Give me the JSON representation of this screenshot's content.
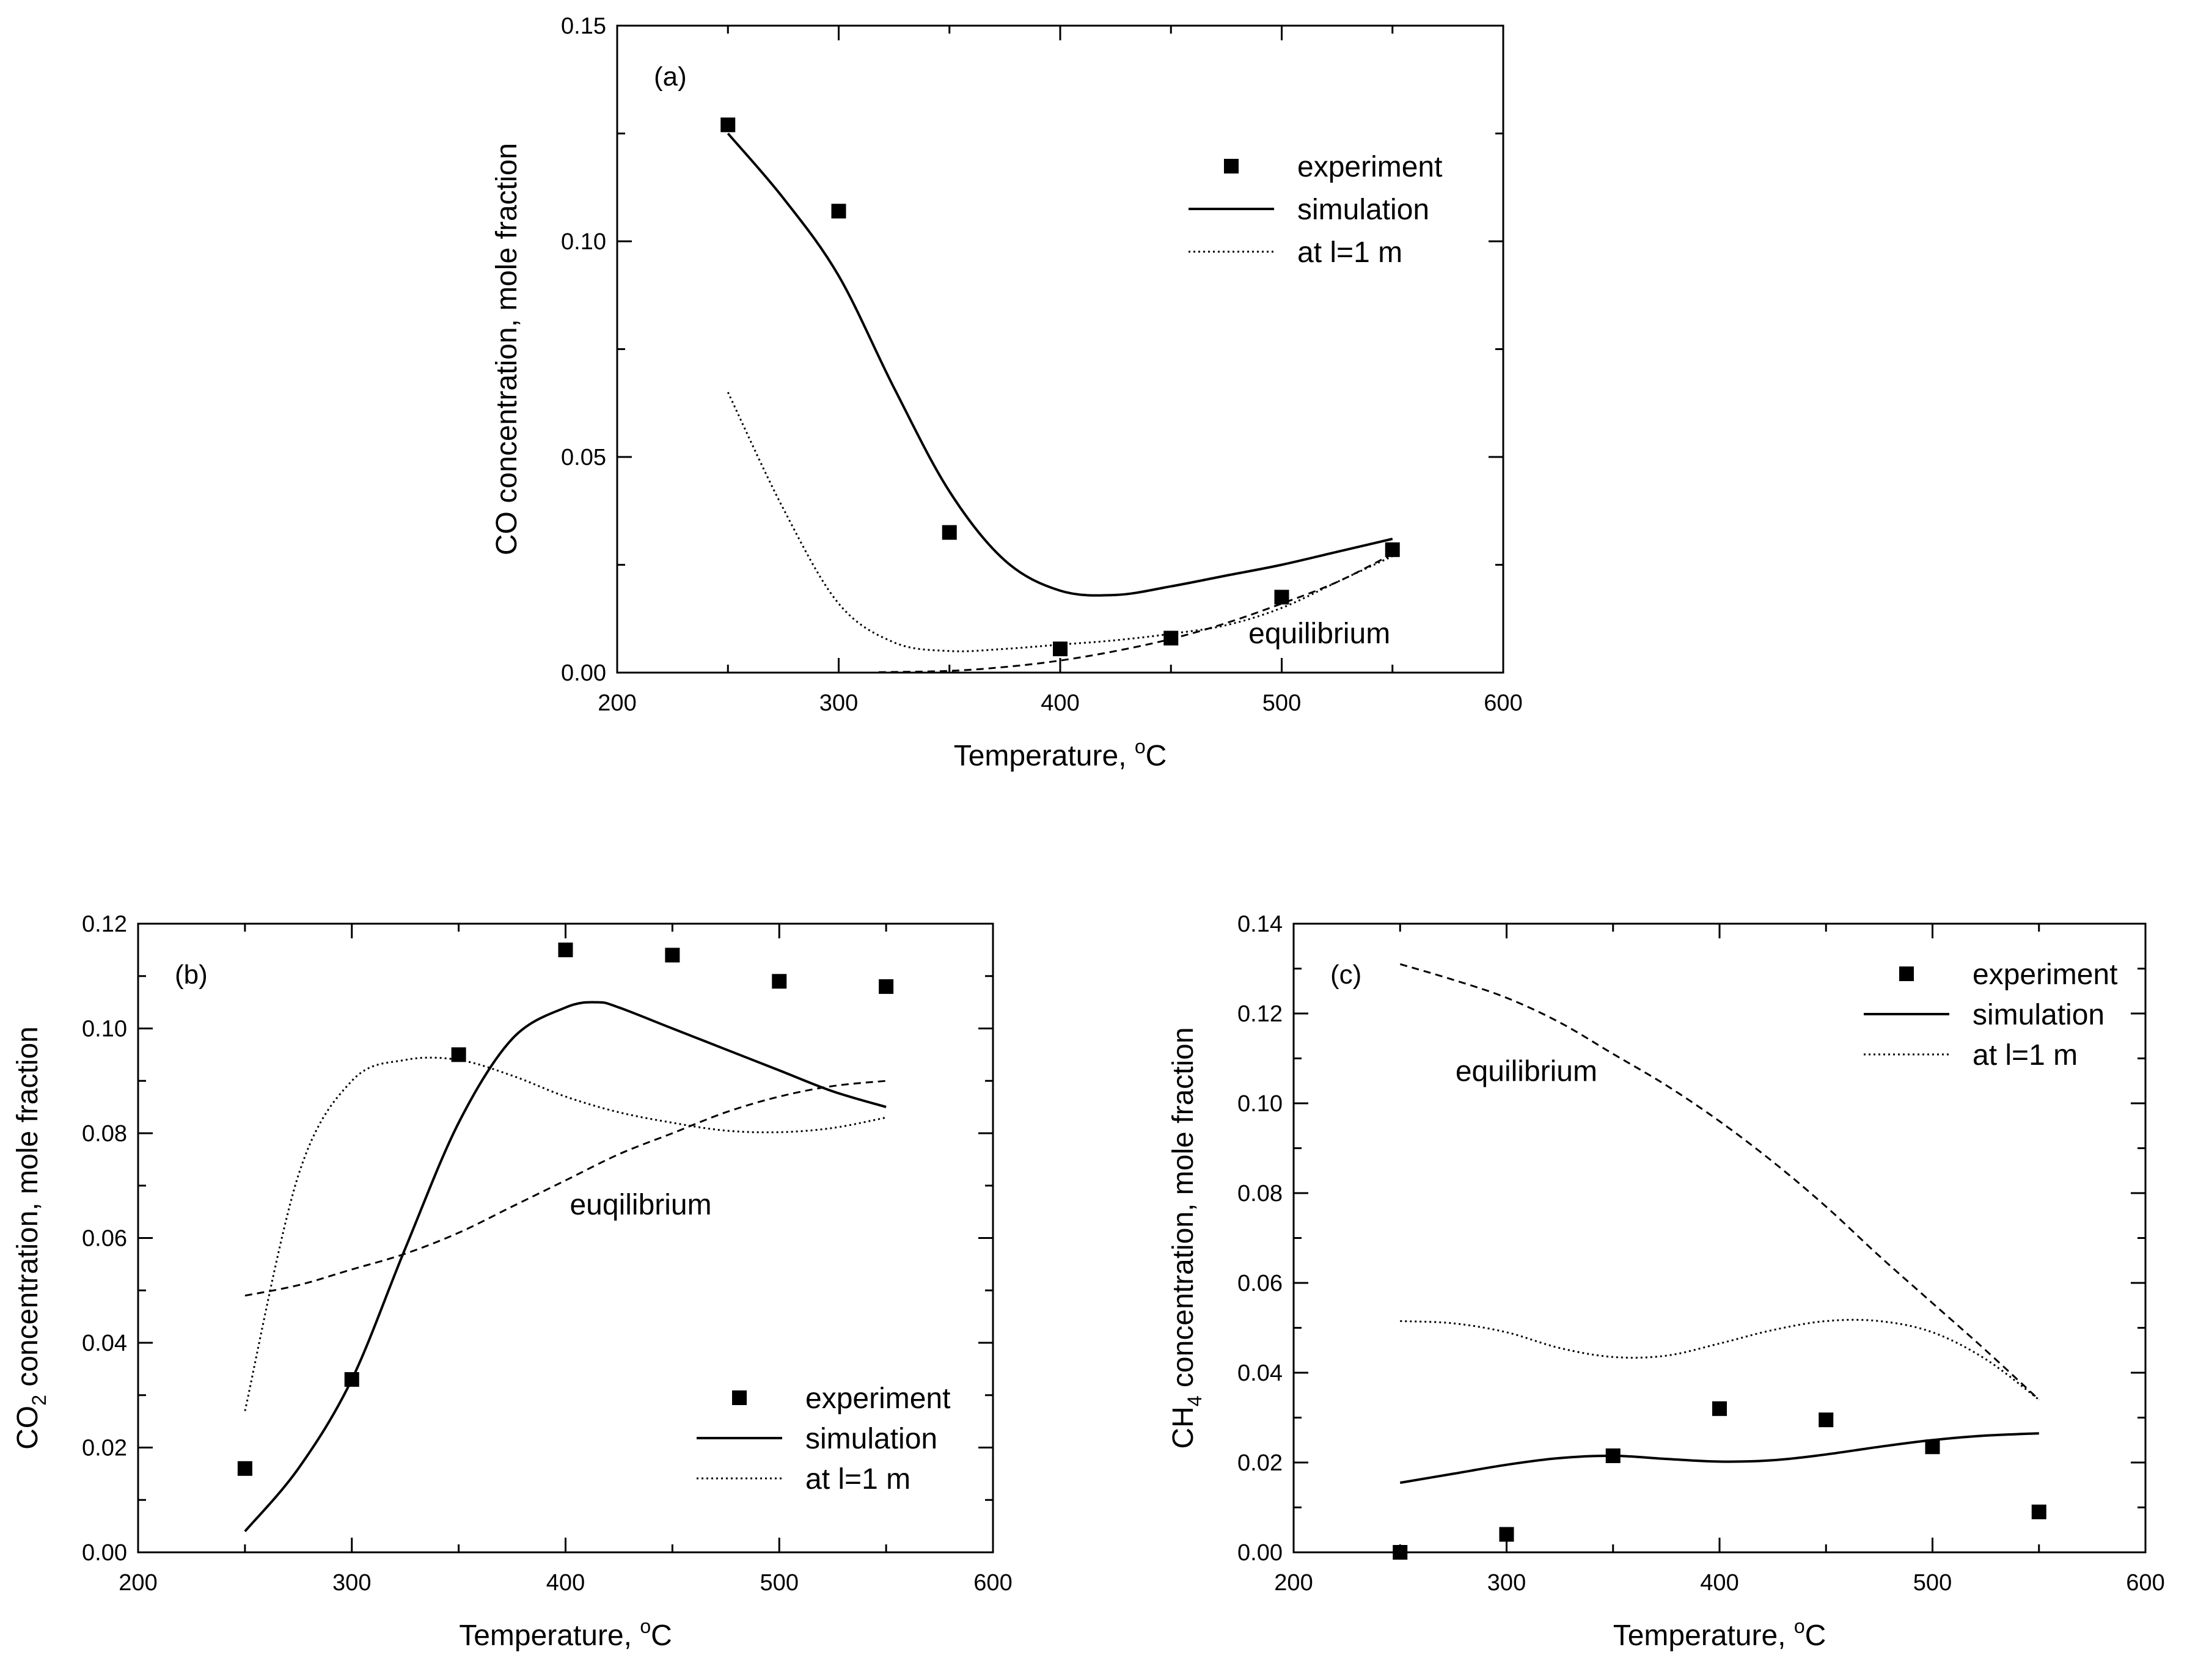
{
  "chart_data": [
    {
      "id": "a",
      "type": "scatter",
      "panel_label": "(a)",
      "xlabel": "Temperature, ",
      "xlabel_sup": "o",
      "xlabel_tail": "C",
      "ylabel_parts": [
        {
          "t": "CO concentration, mole fraction",
          "k": "n"
        }
      ],
      "xlim": [
        200,
        600
      ],
      "ylim": [
        0,
        0.15
      ],
      "xticks": [
        "200",
        "300",
        "400",
        "500",
        "600"
      ],
      "yticks": [
        "0.00",
        "0.05",
        "0.10",
        "0.15"
      ],
      "legend": {
        "placement": "top-right",
        "entries": [
          "experiment",
          "simulation",
          "at l=1 m"
        ]
      },
      "annotations": [
        {
          "text": "equilibrium",
          "x": 485,
          "y": 0.0068
        }
      ],
      "series": [
        {
          "name": "experiment",
          "style": "marker",
          "x": [
            250,
            300,
            350,
            400,
            450,
            500,
            550
          ],
          "y": [
            0.127,
            0.107,
            0.0325,
            0.0055,
            0.008,
            0.0175,
            0.0285
          ]
        },
        {
          "name": "simulation",
          "style": "solid",
          "x": [
            250,
            275,
            300,
            325,
            350,
            375,
            400,
            425,
            450,
            475,
            500,
            525,
            550
          ],
          "y": [
            0.125,
            0.11,
            0.092,
            0.066,
            0.042,
            0.026,
            0.019,
            0.018,
            0.02,
            0.0225,
            0.025,
            0.028,
            0.031
          ]
        },
        {
          "name": "at l=1 m",
          "style": "dotted",
          "x": [
            250,
            275,
            300,
            325,
            350,
            375,
            400,
            425,
            450,
            475,
            500,
            525,
            550
          ],
          "y": [
            0.065,
            0.038,
            0.016,
            0.007,
            0.005,
            0.0055,
            0.0065,
            0.0075,
            0.009,
            0.011,
            0.015,
            0.021,
            0.027
          ]
        },
        {
          "name": "equilibrium",
          "style": "dashed",
          "x": [
            318,
            350,
            375,
            400,
            425,
            450,
            475,
            500,
            525,
            550
          ],
          "y": [
            0.0001,
            0.0004,
            0.0013,
            0.0028,
            0.005,
            0.0078,
            0.0115,
            0.016,
            0.021,
            0.0275
          ]
        }
      ]
    },
    {
      "id": "b",
      "type": "scatter",
      "panel_label": "(b)",
      "xlabel": "Temperature, ",
      "xlabel_sup": "o",
      "xlabel_tail": "C",
      "ylabel_parts": [
        {
          "t": "CO",
          "k": "n"
        },
        {
          "t": "2",
          "k": "sub"
        },
        {
          "t": " concentration, mole fraction",
          "k": "n"
        }
      ],
      "xlim": [
        200,
        600
      ],
      "ylim": [
        0,
        0.12
      ],
      "xticks": [
        "200",
        "300",
        "400",
        "500",
        "600"
      ],
      "yticks": [
        "0.00",
        "0.02",
        "0.04",
        "0.06",
        "0.08",
        "0.10",
        "0.12"
      ],
      "legend": {
        "placement": "bottom-right",
        "entries": [
          "experiment",
          "simulation",
          "at l=1 m"
        ]
      },
      "annotations": [
        {
          "text": "euqilibrium",
          "x": 402,
          "y": 0.0645
        }
      ],
      "series": [
        {
          "name": "experiment",
          "style": "marker",
          "x": [
            250,
            300,
            350,
            400,
            450,
            500,
            550
          ],
          "y": [
            0.016,
            0.033,
            0.095,
            0.115,
            0.114,
            0.109,
            0.108
          ]
        },
        {
          "name": "simulation",
          "style": "solid",
          "x": [
            250,
            275,
            300,
            325,
            350,
            375,
            400,
            415,
            425,
            450,
            475,
            500,
            525,
            550
          ],
          "y": [
            0.004,
            0.016,
            0.033,
            0.058,
            0.082,
            0.098,
            0.104,
            0.105,
            0.104,
            0.1,
            0.096,
            0.092,
            0.088,
            0.085
          ]
        },
        {
          "name": "at l=1 m",
          "style": "dotted",
          "x": [
            250,
            275,
            300,
            325,
            350,
            375,
            400,
            425,
            450,
            475,
            500,
            525,
            550
          ],
          "y": [
            0.027,
            0.072,
            0.09,
            0.094,
            0.094,
            0.091,
            0.087,
            0.084,
            0.082,
            0.0805,
            0.0802,
            0.081,
            0.083
          ]
        },
        {
          "name": "equilibrium",
          "style": "dashed",
          "x": [
            250,
            275,
            300,
            325,
            350,
            375,
            400,
            425,
            450,
            475,
            500,
            525,
            550
          ],
          "y": [
            0.049,
            0.051,
            0.054,
            0.057,
            0.061,
            0.066,
            0.071,
            0.076,
            0.08,
            0.084,
            0.087,
            0.089,
            0.09
          ]
        }
      ]
    },
    {
      "id": "c",
      "type": "scatter",
      "panel_label": "(c)",
      "xlabel": "Temperature, ",
      "xlabel_sup": "o",
      "xlabel_tail": "C",
      "ylabel_parts": [
        {
          "t": "CH",
          "k": "n"
        },
        {
          "t": "4",
          "k": "sub"
        },
        {
          "t": " concentration, mole fraction",
          "k": "n"
        }
      ],
      "xlim": [
        200,
        600
      ],
      "ylim": [
        0,
        0.14
      ],
      "xticks": [
        "200",
        "300",
        "400",
        "500",
        "600"
      ],
      "yticks": [
        "0.00",
        "0.02",
        "0.04",
        "0.06",
        "0.08",
        "0.10",
        "0.12",
        "0.14"
      ],
      "legend": {
        "placement": "top-right",
        "entries": [
          "experiment",
          "simulation",
          "at l=1 m"
        ]
      },
      "annotations": [
        {
          "text": "equilibrium",
          "x": 276,
          "y": 0.105
        }
      ],
      "series": [
        {
          "name": "experiment",
          "style": "marker",
          "x": [
            250,
            300,
            350,
            400,
            450,
            500,
            550
          ],
          "y": [
            0.0,
            0.004,
            0.0215,
            0.032,
            0.0295,
            0.0235,
            0.009
          ]
        },
        {
          "name": "simulation",
          "style": "solid",
          "x": [
            250,
            275,
            300,
            325,
            350,
            375,
            400,
            425,
            450,
            475,
            500,
            525,
            550
          ],
          "y": [
            0.0155,
            0.0175,
            0.0195,
            0.021,
            0.0215,
            0.0208,
            0.0202,
            0.0205,
            0.0218,
            0.0235,
            0.025,
            0.026,
            0.0265
          ]
        },
        {
          "name": "at l=1 m",
          "style": "dotted",
          "x": [
            250,
            275,
            300,
            325,
            350,
            375,
            400,
            425,
            450,
            475,
            500,
            525,
            550
          ],
          "y": [
            0.0515,
            0.051,
            0.049,
            0.0455,
            0.0435,
            0.0438,
            0.0465,
            0.0495,
            0.0515,
            0.0515,
            0.049,
            0.043,
            0.034
          ]
        },
        {
          "name": "equilibrium",
          "style": "dashed",
          "x": [
            250,
            275,
            300,
            325,
            350,
            375,
            400,
            425,
            450,
            475,
            500,
            525,
            550
          ],
          "y": [
            0.131,
            0.1275,
            0.1235,
            0.118,
            0.111,
            0.104,
            0.096,
            0.087,
            0.077,
            0.066,
            0.0555,
            0.045,
            0.034
          ]
        }
      ]
    }
  ]
}
